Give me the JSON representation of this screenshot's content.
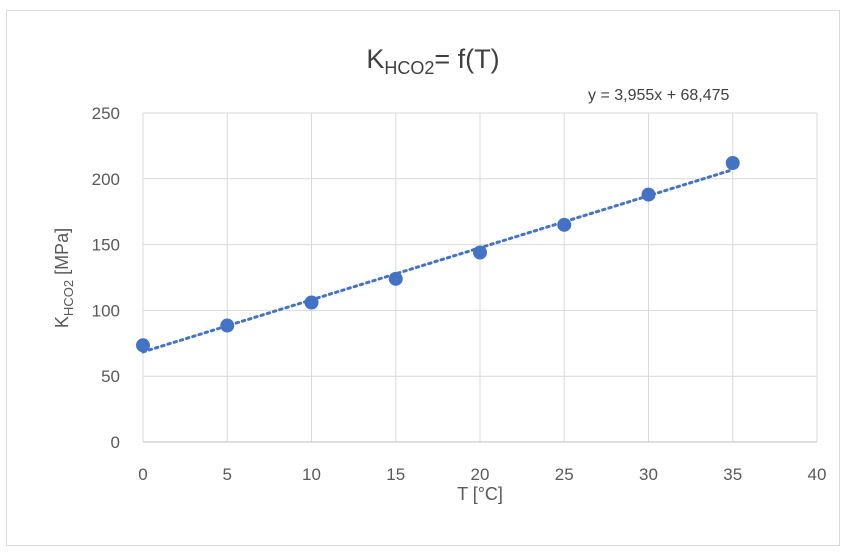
{
  "chart_data": {
    "type": "scatter",
    "title_main": "K",
    "title_sub": "HCO2",
    "title_tail": "= f(T)",
    "xlabel": "T [°C]",
    "ylabel_main": "K",
    "ylabel_sub": "HCO2",
    "ylabel_tail": " [MPa]",
    "xlim": [
      0,
      40
    ],
    "ylim": [
      0,
      250
    ],
    "xticks": [
      0,
      5,
      10,
      15,
      20,
      25,
      30,
      35,
      40
    ],
    "yticks": [
      0,
      50,
      100,
      150,
      200,
      250
    ],
    "grid": true,
    "series": [
      {
        "x": [
          0,
          5,
          10,
          15,
          20,
          25,
          30,
          35
        ],
        "y": [
          73.5,
          88.5,
          106,
          124,
          144,
          165,
          188,
          212
        ],
        "color": "#4472C4"
      }
    ],
    "trendline": {
      "type": "linear",
      "slope": 3.955,
      "intercept": 68.475,
      "equation": "y = 3,955x + 68,475",
      "style": "dotted",
      "color": "#4472C4"
    }
  }
}
